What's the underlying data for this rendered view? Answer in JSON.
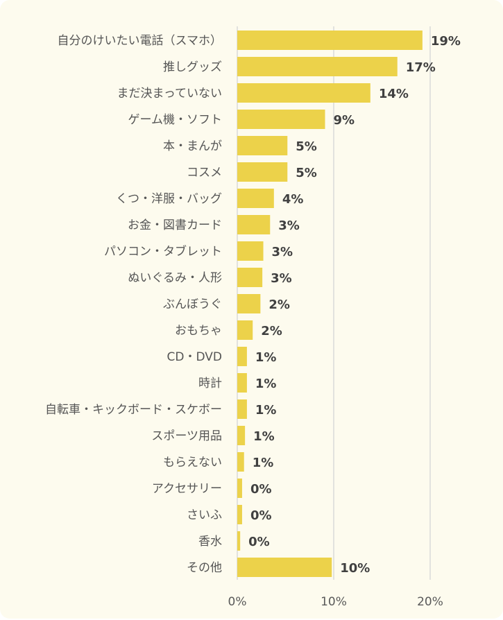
{
  "chart_data": {
    "type": "bar",
    "orientation": "horizontal",
    "categories": [
      "自分のけいたい電話（スマホ）",
      "推しグッズ",
      "まだ決まっていない",
      "ゲーム機・ソフト",
      "本・まんが",
      "コスメ",
      "くつ・洋服・バッグ",
      "お金・図書カード",
      "パソコン・タブレット",
      "ぬいぐるみ・人形",
      "ぶんぼうぐ",
      "おもちゃ",
      "CD・DVD",
      "時計",
      "自転車・キックボード・スケボー",
      "スポーツ用品",
      "もらえない",
      "アクセサリー",
      "さいふ",
      "香水",
      "その他"
    ],
    "values": [
      19.2,
      16.6,
      13.8,
      9.1,
      5.2,
      5.2,
      3.8,
      3.4,
      2.7,
      2.6,
      2.4,
      1.6,
      1.0,
      1.0,
      1.0,
      0.8,
      0.7,
      0.5,
      0.5,
      0.3,
      9.8
    ],
    "data_labels": [
      "19%",
      "17%",
      "14%",
      "9%",
      "5%",
      "5%",
      "4%",
      "3%",
      "3%",
      "3%",
      "2%",
      "2%",
      "1%",
      "1%",
      "1%",
      "1%",
      "1%",
      "0%",
      "0%",
      "0%",
      "10%"
    ],
    "xlim": [
      0,
      20
    ],
    "x_ticks": [
      "0%",
      "10%",
      "20%"
    ],
    "x_tick_values": [
      0,
      10,
      20
    ],
    "grid": "vertical",
    "bar_color": "#ecd24a",
    "title": "",
    "xlabel": "",
    "ylabel": ""
  }
}
